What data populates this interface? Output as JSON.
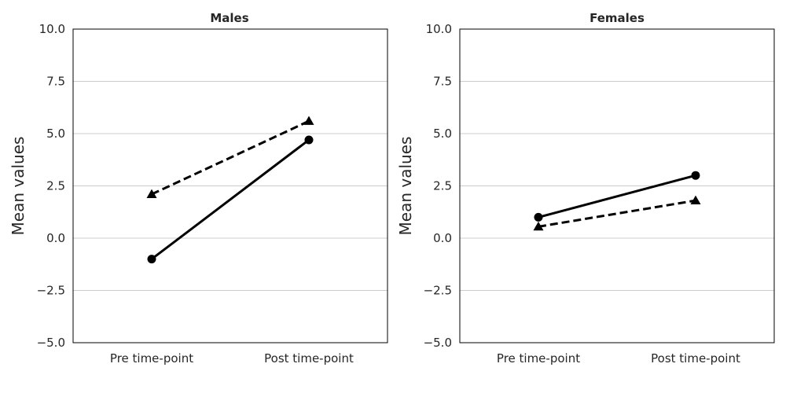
{
  "chart_data": [
    {
      "type": "line",
      "title": "Males",
      "xlabel": "",
      "ylabel": "Mean values",
      "categories": [
        "Pre time-point",
        "Post time-point"
      ],
      "ylim": [
        -5.0,
        10.0
      ],
      "yticks": [
        -5.0,
        -2.5,
        0.0,
        2.5,
        5.0,
        7.5,
        10.0
      ],
      "ytick_labels": [
        "−5.0",
        "−2.5",
        "0.0",
        "2.5",
        "5.0",
        "7.5",
        "10.0"
      ],
      "grid": "horizontal",
      "series": [
        {
          "values": [
            -1.0,
            4.7
          ],
          "line_style": "solid",
          "marker": "circle",
          "color": "#000000"
        },
        {
          "values": [
            2.1,
            5.6
          ],
          "line_style": "dashed",
          "marker": "triangle",
          "color": "#000000"
        }
      ]
    },
    {
      "type": "line",
      "title": "Females",
      "xlabel": "",
      "ylabel": "Mean values",
      "categories": [
        "Pre time-point",
        "Post time-point"
      ],
      "ylim": [
        -5.0,
        10.0
      ],
      "yticks": [
        -5.0,
        -2.5,
        0.0,
        2.5,
        5.0,
        7.5,
        10.0
      ],
      "ytick_labels": [
        "−5.0",
        "−2.5",
        "0.0",
        "2.5",
        "5.0",
        "7.5",
        "10.0"
      ],
      "grid": "horizontal",
      "series": [
        {
          "values": [
            1.0,
            3.0
          ],
          "line_style": "solid",
          "marker": "circle",
          "color": "#000000"
        },
        {
          "values": [
            0.55,
            1.8
          ],
          "line_style": "dashed",
          "marker": "triangle",
          "color": "#000000"
        }
      ]
    }
  ]
}
